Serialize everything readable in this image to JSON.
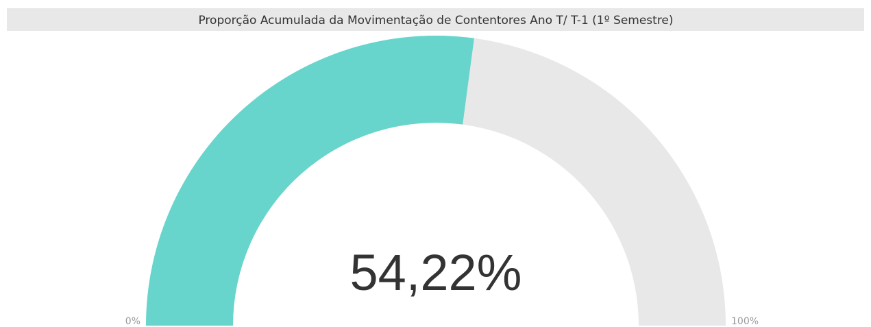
{
  "chart_data": {
    "type": "gauge",
    "title": "Proporção Acumulada da Movimentação de Contentores Ano T/ T-1 (1º Semestre)",
    "values": [
      54.22
    ],
    "value_labels": [
      "54,22%"
    ],
    "color": "#67d5cc",
    "track_color": "#e8e8e8",
    "ylim": [
      0,
      100
    ],
    "yticks": [
      {
        "value": 0,
        "label": "0%"
      },
      {
        "value": 100,
        "label": "100%"
      }
    ]
  }
}
